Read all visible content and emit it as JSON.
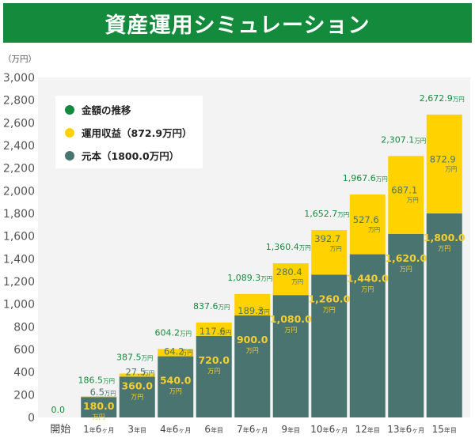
{
  "header": {
    "title": "資産運用シミュレーション"
  },
  "legend": {
    "total": "金額の推移",
    "yield": "運用収益（872.9万円）",
    "principal": "元本（1800.0万円）"
  },
  "chart_data": {
    "type": "bar",
    "stacked": true,
    "title": "資産運用シミュレーション",
    "ylabel": "（万円）",
    "ylim": [
      0,
      3000
    ],
    "yticks": [
      "0",
      "200",
      "400",
      "600",
      "800",
      "1,000",
      "1,200",
      "1,400",
      "1,600",
      "1,800",
      "2,000",
      "2,200",
      "2,400",
      "2,600",
      "2,800",
      "3,000"
    ],
    "categories": [
      {
        "main": "開始",
        "parts": [
          [
            "開始",
            "big"
          ]
        ]
      },
      {
        "main": "1年6ヶ月",
        "parts": [
          [
            "1",
            "big"
          ],
          [
            "年",
            "small"
          ],
          [
            "6",
            "big"
          ],
          [
            "ヶ月",
            "small"
          ]
        ]
      },
      {
        "main": "3年目",
        "parts": [
          [
            "3",
            "big"
          ],
          [
            "年目",
            "small"
          ]
        ]
      },
      {
        "main": "4年6ヶ月",
        "parts": [
          [
            "4",
            "big"
          ],
          [
            "年",
            "small"
          ],
          [
            "6",
            "big"
          ],
          [
            "ヶ月",
            "small"
          ]
        ]
      },
      {
        "main": "6年目",
        "parts": [
          [
            "6",
            "big"
          ],
          [
            "年目",
            "small"
          ]
        ]
      },
      {
        "main": "7年6ヶ月",
        "parts": [
          [
            "7",
            "big"
          ],
          [
            "年",
            "small"
          ],
          [
            "6",
            "big"
          ],
          [
            "ヶ月",
            "small"
          ]
        ]
      },
      {
        "main": "9年目",
        "parts": [
          [
            "9",
            "big"
          ],
          [
            "年目",
            "small"
          ]
        ]
      },
      {
        "main": "10年6ヶ月",
        "parts": [
          [
            "10",
            "big"
          ],
          [
            "年",
            "small"
          ],
          [
            "6",
            "big"
          ],
          [
            "ヶ月",
            "small"
          ]
        ]
      },
      {
        "main": "12年目",
        "parts": [
          [
            "12",
            "big"
          ],
          [
            "年目",
            "small"
          ]
        ]
      },
      {
        "main": "13年6ヶ月",
        "parts": [
          [
            "13",
            "big"
          ],
          [
            "年",
            "small"
          ],
          [
            "6",
            "big"
          ],
          [
            "ヶ月",
            "small"
          ]
        ]
      },
      {
        "main": "15年目",
        "parts": [
          [
            "15",
            "big"
          ],
          [
            "年目",
            "small"
          ]
        ]
      }
    ],
    "series": [
      {
        "name": "元本",
        "color": "#4a7470",
        "label_color": "#f5cf2e",
        "values": [
          0,
          180,
          360,
          540,
          720,
          900,
          1080,
          1260,
          1440,
          1620,
          1800
        ],
        "labels": [
          "",
          "180.0",
          "360.0",
          "540.0",
          "720.0",
          "900.0",
          "1,080.0",
          "1,260.0",
          "1,440.0",
          "1,620.0",
          "1,800.0"
        ]
      },
      {
        "name": "運用収益",
        "color": "#ffd200",
        "label_color": "#4a7470",
        "values": [
          0,
          6.5,
          27.5,
          64.2,
          117.6,
          189.3,
          280.4,
          392.7,
          527.6,
          687.1,
          872.9
        ],
        "labels": [
          "",
          "6.5",
          "27.5",
          "64.2",
          "117.6",
          "189.3",
          "280.4",
          "392.7",
          "527.6",
          "687.1",
          "872.9"
        ]
      }
    ],
    "totals": {
      "color": "#148b3c",
      "values": [
        0,
        186.5,
        387.5,
        604.2,
        837.6,
        1089.3,
        1360.4,
        1652.7,
        1967.6,
        2307.1,
        2672.9
      ],
      "labels": [
        "0.0",
        "186.5",
        "387.5",
        "604.2",
        "837.6",
        "1,089.3",
        "1,360.4",
        "1,652.7",
        "1,967.6",
        "2,307.1",
        "2,672.9"
      ]
    },
    "unit": "万円",
    "plot_background": "#f3f3f3",
    "accent": "#148b3c"
  }
}
